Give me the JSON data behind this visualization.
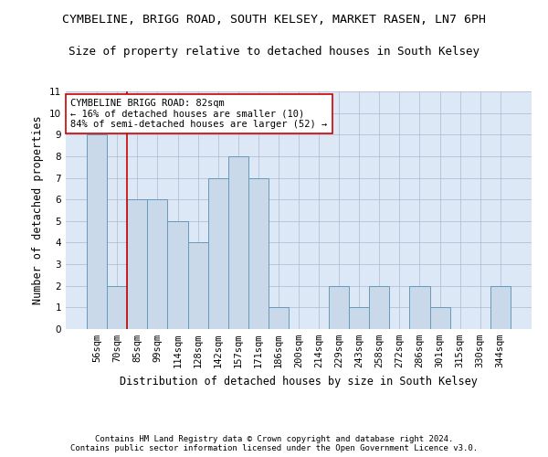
{
  "title_line1": "CYMBELINE, BRIGG ROAD, SOUTH KELSEY, MARKET RASEN, LN7 6PH",
  "title_line2": "Size of property relative to detached houses in South Kelsey",
  "xlabel": "Distribution of detached houses by size in South Kelsey",
  "ylabel": "Number of detached properties",
  "categories": [
    "56sqm",
    "70sqm",
    "85sqm",
    "99sqm",
    "114sqm",
    "128sqm",
    "142sqm",
    "157sqm",
    "171sqm",
    "186sqm",
    "200sqm",
    "214sqm",
    "229sqm",
    "243sqm",
    "258sqm",
    "272sqm",
    "286sqm",
    "301sqm",
    "315sqm",
    "330sqm",
    "344sqm"
  ],
  "values": [
    9,
    2,
    6,
    6,
    5,
    4,
    7,
    8,
    7,
    1,
    0,
    0,
    2,
    1,
    2,
    0,
    2,
    1,
    0,
    0,
    2
  ],
  "bar_color": "#c9d9ea",
  "bar_edge_color": "#6699bb",
  "ylim": [
    0,
    11
  ],
  "yticks": [
    0,
    1,
    2,
    3,
    4,
    5,
    6,
    7,
    8,
    9,
    10,
    11
  ],
  "annotation_box_text": "CYMBELINE BRIGG ROAD: 82sqm\n← 16% of detached houses are smaller (10)\n84% of semi-detached houses are larger (52) →",
  "vline_x_index": 1.5,
  "vline_color": "#cc0000",
  "footer_line1": "Contains HM Land Registry data © Crown copyright and database right 2024.",
  "footer_line2": "Contains public sector information licensed under the Open Government Licence v3.0.",
  "background_color": "#dce8f5",
  "grid_color": "#b0b8cc",
  "title_fontsize": 9.5,
  "subtitle_fontsize": 9,
  "axis_label_fontsize": 8.5,
  "tick_fontsize": 7.5,
  "annotation_fontsize": 7.5,
  "footer_fontsize": 6.5
}
